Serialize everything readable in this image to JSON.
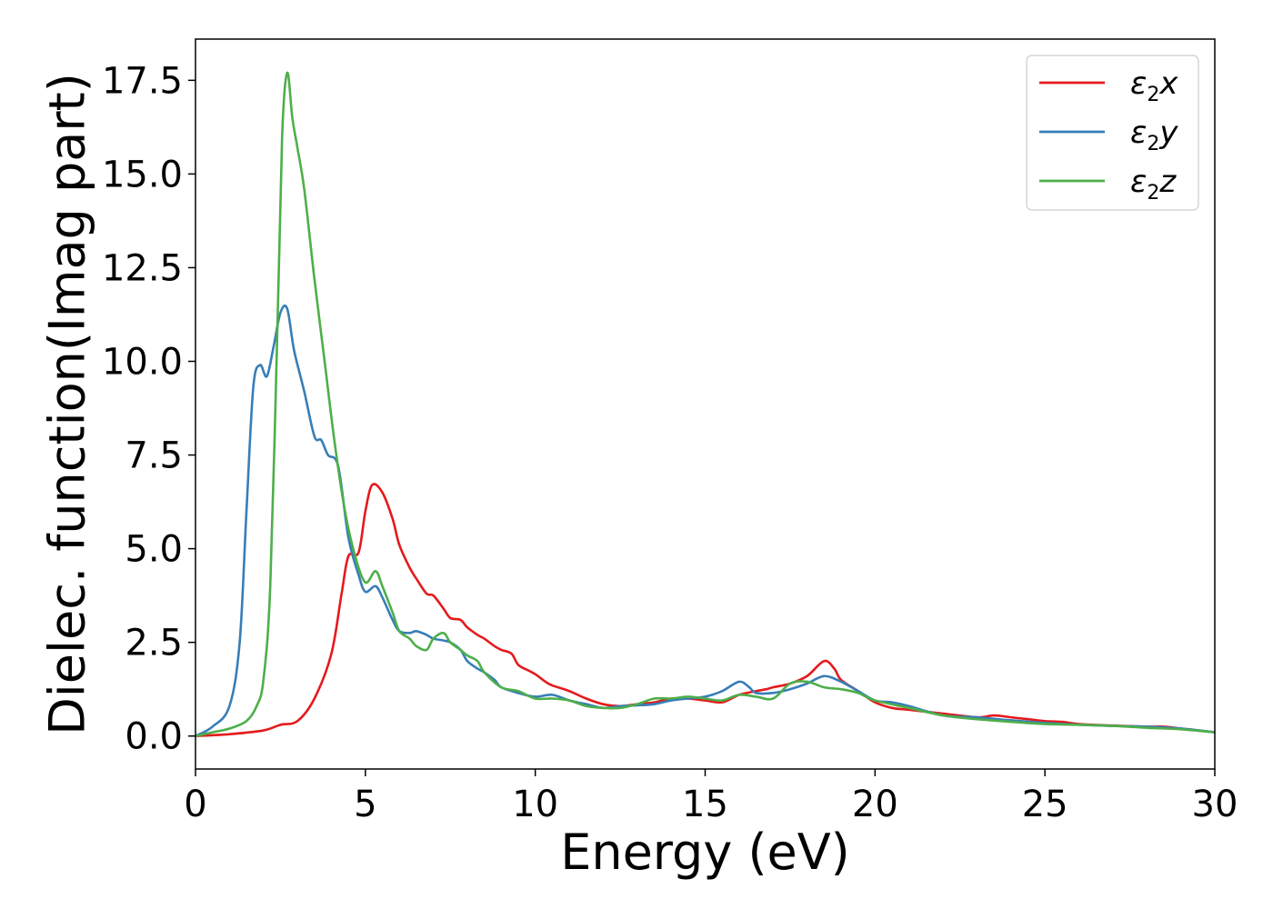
{
  "chart_data": {
    "type": "line",
    "xlabel": "Energy (eV)",
    "ylabel": "Dielec. function(Imag part)",
    "xlim": [
      0,
      30
    ],
    "ylim": [
      -0.88,
      18.6
    ],
    "xticks": [
      0,
      5,
      10,
      15,
      20,
      25,
      30
    ],
    "xtick_labels": [
      "0",
      "5",
      "10",
      "15",
      "20",
      "25",
      "30"
    ],
    "yticks": [
      0.0,
      2.5,
      5.0,
      7.5,
      10.0,
      12.5,
      15.0,
      17.5
    ],
    "ytick_labels": [
      "0.0",
      "2.5",
      "5.0",
      "7.5",
      "10.0",
      "12.5",
      "15.0",
      "17.5"
    ],
    "grid": false,
    "legend_position": "top-right",
    "series": [
      {
        "name": "ε2x",
        "symbol": "ε",
        "sub": "2",
        "suffix": "x",
        "color": "#e41a1c",
        "x": [
          0,
          1.0,
          2.0,
          2.5,
          3.0,
          3.5,
          4.0,
          4.3,
          4.5,
          4.8,
          5.0,
          5.2,
          5.5,
          5.8,
          6.0,
          6.3,
          6.5,
          6.8,
          7.0,
          7.3,
          7.5,
          7.8,
          8.0,
          8.3,
          8.5,
          8.8,
          9.0,
          9.3,
          9.5,
          9.8,
          10.0,
          10.3,
          10.5,
          11.0,
          11.5,
          12.0,
          12.5,
          13.0,
          13.5,
          14.0,
          14.5,
          15.0,
          15.5,
          16.0,
          16.5,
          16.8,
          17.0,
          17.5,
          18.0,
          18.5,
          18.8,
          19.0,
          19.5,
          20.0,
          20.5,
          21.0,
          22.0,
          23.0,
          23.5,
          24.0,
          24.5,
          25.0,
          25.5,
          26.0,
          27.0,
          28.0,
          28.5,
          29.0,
          30.0
        ],
        "y": [
          0.0,
          0.05,
          0.15,
          0.3,
          0.4,
          1.0,
          2.2,
          3.8,
          4.8,
          4.9,
          6.0,
          6.7,
          6.5,
          5.8,
          5.1,
          4.5,
          4.2,
          3.8,
          3.75,
          3.4,
          3.15,
          3.1,
          2.9,
          2.7,
          2.6,
          2.4,
          2.3,
          2.2,
          1.9,
          1.75,
          1.65,
          1.45,
          1.35,
          1.2,
          1.0,
          0.85,
          0.8,
          0.85,
          0.9,
          1.0,
          1.0,
          0.95,
          0.9,
          1.1,
          1.2,
          1.25,
          1.3,
          1.4,
          1.6,
          2.0,
          1.8,
          1.5,
          1.2,
          0.9,
          0.75,
          0.7,
          0.6,
          0.5,
          0.55,
          0.5,
          0.45,
          0.4,
          0.38,
          0.32,
          0.28,
          0.25,
          0.25,
          0.2,
          0.1
        ]
      },
      {
        "name": "ε2y",
        "symbol": "ε",
        "sub": "2",
        "suffix": "y",
        "color": "#377eb8",
        "x": [
          0,
          0.5,
          1.0,
          1.3,
          1.5,
          1.7,
          1.9,
          2.1,
          2.3,
          2.5,
          2.7,
          2.9,
          3.2,
          3.5,
          3.7,
          3.9,
          4.2,
          4.5,
          4.8,
          5.0,
          5.3,
          5.5,
          5.8,
          6.0,
          6.3,
          6.5,
          6.8,
          7.0,
          7.3,
          7.5,
          7.8,
          8.0,
          8.3,
          8.5,
          8.8,
          9.0,
          9.5,
          10.0,
          10.5,
          11.0,
          11.5,
          12.0,
          12.5,
          13.0,
          13.5,
          14.0,
          14.5,
          15.0,
          15.5,
          16.0,
          16.3,
          16.5,
          17.0,
          17.5,
          18.0,
          18.5,
          19.0,
          19.5,
          20.0,
          20.5,
          21.0,
          22.0,
          23.0,
          24.0,
          25.0,
          26.0,
          27.0,
          28.0,
          29.0,
          30.0
        ],
        "y": [
          0.0,
          0.25,
          0.8,
          2.5,
          6.0,
          9.3,
          9.9,
          9.6,
          10.4,
          11.3,
          11.4,
          10.3,
          9.2,
          8.0,
          7.9,
          7.5,
          7.2,
          5.3,
          4.3,
          3.85,
          4.0,
          3.7,
          3.1,
          2.8,
          2.75,
          2.8,
          2.7,
          2.6,
          2.55,
          2.5,
          2.3,
          2.0,
          1.8,
          1.7,
          1.5,
          1.3,
          1.15,
          1.05,
          1.1,
          0.95,
          0.85,
          0.75,
          0.8,
          0.82,
          0.85,
          0.95,
          1.0,
          1.05,
          1.2,
          1.45,
          1.3,
          1.15,
          1.15,
          1.25,
          1.4,
          1.6,
          1.45,
          1.2,
          0.95,
          0.9,
          0.8,
          0.55,
          0.5,
          0.42,
          0.35,
          0.3,
          0.27,
          0.25,
          0.2,
          0.1
        ]
      },
      {
        "name": "ε2z",
        "symbol": "ε",
        "sub": "2",
        "suffix": "z",
        "color": "#4daf4a",
        "x": [
          0,
          0.5,
          1.0,
          1.5,
          1.8,
          2.0,
          2.2,
          2.4,
          2.55,
          2.7,
          2.85,
          3.0,
          3.2,
          3.5,
          3.8,
          4.1,
          4.4,
          4.7,
          5.0,
          5.3,
          5.5,
          5.8,
          6.0,
          6.3,
          6.5,
          6.8,
          7.0,
          7.3,
          7.5,
          7.8,
          8.0,
          8.3,
          8.5,
          9.0,
          9.5,
          10.0,
          10.5,
          11.0,
          11.5,
          12.0,
          12.5,
          13.0,
          13.5,
          14.0,
          14.5,
          15.0,
          15.5,
          16.0,
          16.5,
          17.0,
          17.5,
          18.0,
          18.5,
          19.0,
          19.5,
          20.0,
          21.0,
          22.0,
          23.0,
          24.0,
          25.0,
          26.0,
          27.0,
          28.0,
          29.0,
          30.0
        ],
        "y": [
          0.0,
          0.1,
          0.2,
          0.4,
          0.8,
          1.5,
          4.0,
          10.5,
          16.0,
          17.7,
          16.5,
          15.7,
          14.6,
          12.2,
          10.0,
          7.8,
          6.0,
          4.8,
          4.1,
          4.4,
          4.0,
          3.3,
          2.8,
          2.6,
          2.4,
          2.3,
          2.6,
          2.75,
          2.5,
          2.3,
          2.15,
          2.0,
          1.7,
          1.3,
          1.2,
          1.0,
          1.0,
          0.95,
          0.8,
          0.75,
          0.75,
          0.85,
          1.0,
          1.0,
          1.05,
          1.0,
          0.95,
          1.1,
          1.05,
          1.0,
          1.4,
          1.45,
          1.3,
          1.25,
          1.15,
          0.95,
          0.75,
          0.55,
          0.45,
          0.38,
          0.32,
          0.3,
          0.27,
          0.22,
          0.18,
          0.1
        ]
      }
    ]
  }
}
